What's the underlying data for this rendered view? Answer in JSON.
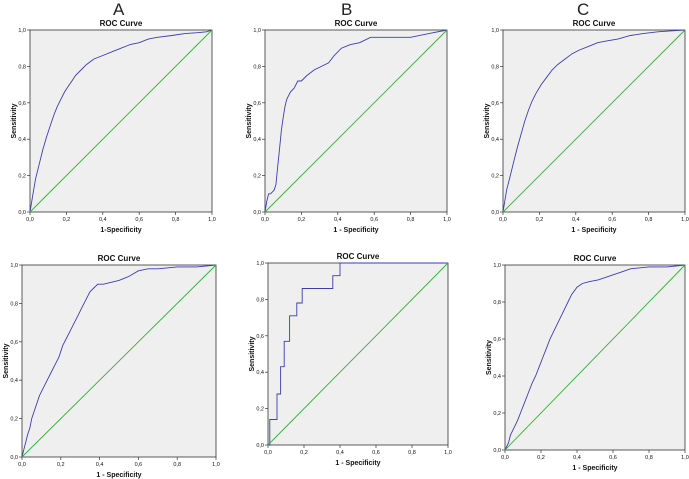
{
  "column_labels": [
    "A",
    "B",
    "C"
  ],
  "chart_data": [
    {
      "type": "line",
      "title": "ROC Curve",
      "xlabel": "1-Specificity",
      "ylabel": "Sensitivity",
      "xlim": [
        0,
        1
      ],
      "ylim": [
        0,
        1
      ],
      "tick_labels": [
        "0,0",
        "0,2",
        "0,4",
        "0,6",
        "0,8",
        "1,0"
      ],
      "grid": false,
      "series": [
        {
          "color": "#3b3fa8",
          "x": [
            0,
            0.01,
            0.02,
            0.03,
            0.05,
            0.07,
            0.09,
            0.11,
            0.13,
            0.15,
            0.17,
            0.19,
            0.21,
            0.23,
            0.25,
            0.28,
            0.31,
            0.35,
            0.4,
            0.45,
            0.5,
            0.55,
            0.6,
            0.65,
            0.7,
            0.78,
            0.85,
            0.92,
            0.97,
            1
          ],
          "y": [
            0,
            0.06,
            0.12,
            0.18,
            0.26,
            0.34,
            0.41,
            0.47,
            0.53,
            0.58,
            0.62,
            0.66,
            0.69,
            0.72,
            0.75,
            0.78,
            0.81,
            0.84,
            0.86,
            0.88,
            0.9,
            0.92,
            0.93,
            0.95,
            0.96,
            0.97,
            0.98,
            0.985,
            0.99,
            1
          ]
        },
        {
          "color": "#2db52d",
          "x": [
            0,
            1
          ],
          "y": [
            0,
            1
          ]
        }
      ]
    },
    {
      "type": "line",
      "title": "ROC Curve",
      "xlabel": "1 - Specificity",
      "ylabel": "Sensitivity",
      "xlim": [
        0,
        1
      ],
      "ylim": [
        0,
        1
      ],
      "tick_labels": [
        "0,0",
        "0,2",
        "0,4",
        "0,6",
        "0,8",
        "1,0"
      ],
      "grid": false,
      "series": [
        {
          "color": "#3b3fa8",
          "x": [
            0,
            0.01,
            0.02,
            0.03,
            0.05,
            0.06,
            0.07,
            0.08,
            0.09,
            0.1,
            0.11,
            0.12,
            0.14,
            0.16,
            0.18,
            0.2,
            0.23,
            0.27,
            0.31,
            0.35,
            0.38,
            0.42,
            0.47,
            0.52,
            0.58,
            0.65,
            0.72,
            0.8,
            0.9,
            1
          ],
          "y": [
            0,
            0.06,
            0.1,
            0.1,
            0.12,
            0.15,
            0.25,
            0.35,
            0.45,
            0.52,
            0.58,
            0.62,
            0.66,
            0.68,
            0.72,
            0.72,
            0.75,
            0.78,
            0.8,
            0.82,
            0.86,
            0.9,
            0.92,
            0.93,
            0.96,
            0.96,
            0.96,
            0.96,
            0.98,
            1
          ]
        },
        {
          "color": "#2db52d",
          "x": [
            0,
            1
          ],
          "y": [
            0,
            1
          ]
        }
      ]
    },
    {
      "type": "line",
      "title": "ROC Curve",
      "xlabel": "1 - Specificity",
      "ylabel": "Sensitivity",
      "xlim": [
        0,
        1
      ],
      "ylim": [
        0,
        1
      ],
      "tick_labels": [
        "0,0",
        "0,2",
        "0,4",
        "0,6",
        "0,8",
        "1,0"
      ],
      "grid": false,
      "series": [
        {
          "color": "#3b3fa8",
          "x": [
            0,
            0.01,
            0.02,
            0.04,
            0.06,
            0.08,
            0.1,
            0.12,
            0.14,
            0.16,
            0.18,
            0.21,
            0.24,
            0.27,
            0.3,
            0.34,
            0.38,
            0.42,
            0.47,
            0.52,
            0.57,
            0.63,
            0.7,
            0.77,
            0.85,
            0.92,
            1
          ],
          "y": [
            0,
            0.06,
            0.12,
            0.2,
            0.28,
            0.36,
            0.43,
            0.5,
            0.56,
            0.61,
            0.65,
            0.7,
            0.74,
            0.78,
            0.81,
            0.84,
            0.87,
            0.89,
            0.91,
            0.93,
            0.94,
            0.95,
            0.97,
            0.98,
            0.99,
            0.995,
            1
          ]
        },
        {
          "color": "#2db52d",
          "x": [
            0,
            1
          ],
          "y": [
            0,
            1
          ]
        }
      ]
    },
    {
      "type": "line",
      "title": "ROC Curve",
      "xlabel": "1 - Specificity",
      "ylabel": "Sensitivity",
      "xlim": [
        0,
        1
      ],
      "ylim": [
        0,
        1
      ],
      "tick_labels": [
        "0,0",
        "0,2",
        "0,4",
        "0,6",
        "0,8",
        "1,0"
      ],
      "grid": false,
      "series": [
        {
          "color": "#3b3fa8",
          "x": [
            0,
            0.01,
            0.02,
            0.03,
            0.04,
            0.05,
            0.07,
            0.09,
            0.11,
            0.13,
            0.15,
            0.17,
            0.19,
            0.21,
            0.23,
            0.25,
            0.27,
            0.29,
            0.31,
            0.33,
            0.35,
            0.37,
            0.39,
            0.42,
            0.46,
            0.5,
            0.55,
            0.6,
            0.65,
            0.7,
            0.8,
            0.9,
            1
          ],
          "y": [
            0,
            0.04,
            0.08,
            0.12,
            0.15,
            0.2,
            0.26,
            0.32,
            0.36,
            0.4,
            0.44,
            0.48,
            0.52,
            0.58,
            0.62,
            0.66,
            0.7,
            0.74,
            0.78,
            0.82,
            0.86,
            0.88,
            0.9,
            0.9,
            0.91,
            0.92,
            0.94,
            0.97,
            0.98,
            0.98,
            0.99,
            0.99,
            1
          ]
        },
        {
          "color": "#2db52d",
          "x": [
            0,
            1
          ],
          "y": [
            0,
            1
          ]
        }
      ]
    },
    {
      "type": "line",
      "title": "ROC Curve",
      "xlabel": "1 - Specificity",
      "ylabel": "Sensitivity",
      "xlim": [
        0,
        1
      ],
      "ylim": [
        0,
        1
      ],
      "tick_labels": [
        "0,0",
        "0,2",
        "0,4",
        "0,6",
        "0,8",
        "1,0"
      ],
      "grid": false,
      "series": [
        {
          "color": "#3b3fa8",
          "x": [
            0,
            0.01,
            0.01,
            0.05,
            0.05,
            0.07,
            0.07,
            0.09,
            0.09,
            0.12,
            0.12,
            0.16,
            0.16,
            0.19,
            0.19,
            0.24,
            0.3,
            0.36,
            0.36,
            0.4,
            0.4,
            0.6,
            0.8,
            1
          ],
          "y": [
            0,
            0,
            0.14,
            0.14,
            0.28,
            0.28,
            0.43,
            0.43,
            0.57,
            0.57,
            0.71,
            0.71,
            0.78,
            0.78,
            0.86,
            0.86,
            0.86,
            0.86,
            0.93,
            0.93,
            1,
            1,
            1,
            1
          ]
        },
        {
          "color": "#2db52d",
          "x": [
            0,
            1
          ],
          "y": [
            0,
            1
          ]
        }
      ]
    },
    {
      "type": "line",
      "title": "ROC Curve",
      "xlabel": "1 - Specificity",
      "ylabel": "Sensitivity",
      "xlim": [
        0,
        1
      ],
      "ylim": [
        0,
        1
      ],
      "tick_labels": [
        "0,0",
        "0,2",
        "0,4",
        "0,6",
        "0,8",
        "1,0"
      ],
      "grid": false,
      "series": [
        {
          "color": "#3b3fa8",
          "x": [
            0,
            0.02,
            0.03,
            0.05,
            0.07,
            0.09,
            0.11,
            0.13,
            0.15,
            0.17,
            0.19,
            0.21,
            0.23,
            0.25,
            0.27,
            0.29,
            0.31,
            0.33,
            0.35,
            0.37,
            0.4,
            0.43,
            0.47,
            0.52,
            0.58,
            0.64,
            0.7,
            0.8,
            0.9,
            1
          ],
          "y": [
            0,
            0.04,
            0.08,
            0.12,
            0.16,
            0.21,
            0.26,
            0.31,
            0.36,
            0.4,
            0.45,
            0.5,
            0.55,
            0.6,
            0.64,
            0.68,
            0.72,
            0.76,
            0.8,
            0.84,
            0.88,
            0.9,
            0.91,
            0.92,
            0.94,
            0.96,
            0.98,
            0.99,
            0.99,
            1
          ]
        },
        {
          "color": "#2db52d",
          "x": [
            0,
            1
          ],
          "y": [
            0,
            1
          ]
        }
      ]
    }
  ]
}
